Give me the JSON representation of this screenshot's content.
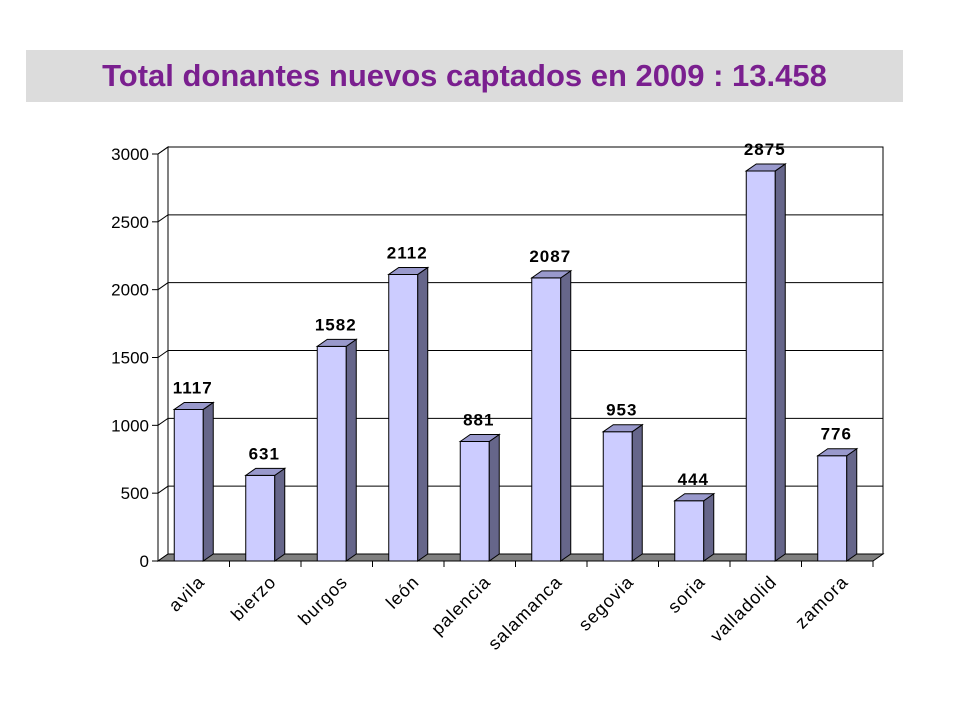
{
  "title": "Total donantes nuevos captados en 2009 : 13.458",
  "chart_data": {
    "type": "bar",
    "title": "Total donantes nuevos captados en 2009 : 13.458",
    "categories": [
      "avila",
      "bierzo",
      "burgos",
      "león",
      "palencia",
      "salamanca",
      "segovia",
      "soria",
      "valladolid",
      "zamora"
    ],
    "values": [
      1117,
      631,
      1582,
      2112,
      881,
      2087,
      953,
      444,
      2875,
      776
    ],
    "ylim": [
      0,
      3000
    ],
    "yticks": [
      0,
      500,
      1000,
      1500,
      2000,
      2500,
      3000
    ],
    "grid": true,
    "three_d": true,
    "colors": {
      "bar_front": "#ccccff",
      "bar_side": "#66668a",
      "bar_top": "#9999cc",
      "floor": "#808080",
      "title": "#7a1f8f",
      "title_bg": "#dcdcdc"
    }
  }
}
